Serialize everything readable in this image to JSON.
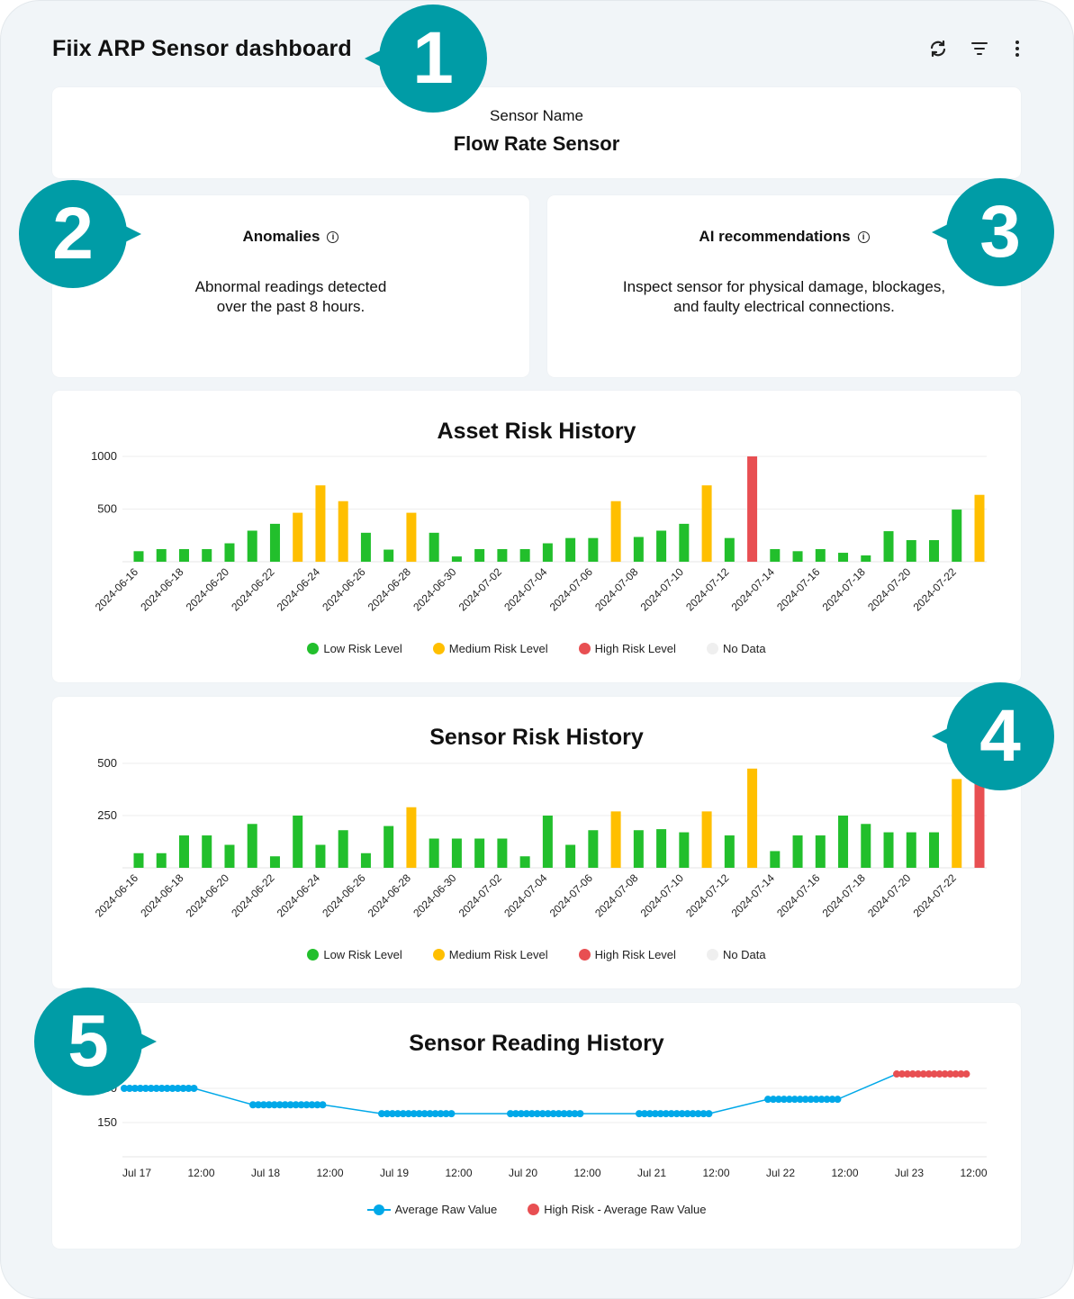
{
  "header": {
    "title": "Fiix ARP Sensor dashboard",
    "icons": [
      "refresh-icon",
      "filter-icon",
      "more-vertical-icon"
    ]
  },
  "sensor": {
    "label": "Sensor Name",
    "name": "Flow Rate Sensor"
  },
  "anomalies": {
    "title": "Anomalies",
    "line1": "Abnormal readings detected",
    "line2": "over the past 8 hours."
  },
  "ai": {
    "title": "AI recommendations",
    "line1": "Inspect sensor for physical damage, blockages,",
    "line2": "and faulty electrical connections."
  },
  "callouts": [
    "1",
    "2",
    "3",
    "4",
    "5"
  ],
  "colors": {
    "low": "#22bf2c",
    "medium": "#ffbf00",
    "high": "#e84f52",
    "nodata": "#efefef",
    "line": "#00a8e8",
    "callout": "#009ca6"
  },
  "legend": {
    "low": "Low Risk Level",
    "medium": "Medium Risk Level",
    "high": "High Risk Level",
    "nodata": "No Data"
  },
  "chart_data": [
    {
      "type": "bar",
      "title": "Asset Risk History",
      "categories": [
        "2024-06-16",
        "2024-06-17",
        "2024-06-18",
        "2024-06-19",
        "2024-06-20",
        "2024-06-21",
        "2024-06-22",
        "2024-06-23",
        "2024-06-24",
        "2024-06-25",
        "2024-06-26",
        "2024-06-27",
        "2024-06-28",
        "2024-06-29",
        "2024-06-30",
        "2024-07-01",
        "2024-07-02",
        "2024-07-03",
        "2024-07-04",
        "2024-07-05",
        "2024-07-06",
        "2024-07-07",
        "2024-07-08",
        "2024-07-09",
        "2024-07-10",
        "2024-07-11",
        "2024-07-12",
        "2024-07-13",
        "2024-07-14",
        "2024-07-15",
        "2024-07-16",
        "2024-07-17",
        "2024-07-18",
        "2024-07-19",
        "2024-07-20",
        "2024-07-21",
        "2024-07-22",
        "2024-07-23"
      ],
      "tick_labels": [
        "2024-06-16",
        "2024-06-18",
        "2024-06-20",
        "2024-06-22",
        "2024-06-24",
        "2024-06-26",
        "2024-06-28",
        "2024-06-30",
        "2024-07-02",
        "2024-07-04",
        "2024-07-06",
        "2024-07-08",
        "2024-07-10",
        "2024-07-12",
        "2024-07-14",
        "2024-07-16",
        "2024-07-18",
        "2024-07-20",
        "2024-07-22"
      ],
      "values": [
        100,
        120,
        120,
        120,
        175,
        295,
        360,
        465,
        725,
        575,
        275,
        115,
        465,
        275,
        50,
        120,
        120,
        120,
        175,
        225,
        225,
        575,
        235,
        295,
        360,
        725,
        225,
        1000,
        120,
        100,
        120,
        85,
        60,
        290,
        205,
        205,
        495,
        635
      ],
      "levels": [
        "low",
        "low",
        "low",
        "low",
        "low",
        "low",
        "low",
        "medium",
        "medium",
        "medium",
        "low",
        "low",
        "medium",
        "low",
        "low",
        "low",
        "low",
        "low",
        "low",
        "low",
        "low",
        "medium",
        "low",
        "low",
        "low",
        "medium",
        "low",
        "high",
        "low",
        "low",
        "low",
        "low",
        "low",
        "low",
        "low",
        "low",
        "low",
        "medium"
      ],
      "yticks": [
        500,
        1000
      ],
      "ylim": [
        0,
        1000
      ],
      "grid": true,
      "legend_position": "bottom"
    },
    {
      "type": "bar",
      "title": "Sensor Risk History",
      "categories": [
        "2024-06-16",
        "2024-06-17",
        "2024-06-18",
        "2024-06-19",
        "2024-06-20",
        "2024-06-21",
        "2024-06-22",
        "2024-06-23",
        "2024-06-24",
        "2024-06-25",
        "2024-06-26",
        "2024-06-27",
        "2024-06-28",
        "2024-06-29",
        "2024-06-30",
        "2024-07-01",
        "2024-07-02",
        "2024-07-03",
        "2024-07-04",
        "2024-07-05",
        "2024-07-06",
        "2024-07-07",
        "2024-07-08",
        "2024-07-09",
        "2024-07-10",
        "2024-07-11",
        "2024-07-12",
        "2024-07-13",
        "2024-07-14",
        "2024-07-15",
        "2024-07-16",
        "2024-07-17",
        "2024-07-18",
        "2024-07-19",
        "2024-07-20",
        "2024-07-21",
        "2024-07-22",
        "2024-07-23"
      ],
      "tick_labels": [
        "2024-06-16",
        "2024-06-18",
        "2024-06-20",
        "2024-06-22",
        "2024-06-24",
        "2024-06-26",
        "2024-06-28",
        "2024-06-30",
        "2024-07-02",
        "2024-07-04",
        "2024-07-06",
        "2024-07-08",
        "2024-07-10",
        "2024-07-12",
        "2024-07-14",
        "2024-07-16",
        "2024-07-18",
        "2024-07-20",
        "2024-07-22"
      ],
      "values": [
        70,
        70,
        155,
        155,
        110,
        210,
        55,
        250,
        110,
        180,
        70,
        200,
        290,
        140,
        140,
        140,
        140,
        55,
        250,
        110,
        180,
        270,
        180,
        185,
        170,
        270,
        155,
        475,
        80,
        155,
        155,
        250,
        210,
        170,
        170,
        170,
        425,
        440
      ],
      "levels": [
        "low",
        "low",
        "low",
        "low",
        "low",
        "low",
        "low",
        "low",
        "low",
        "low",
        "low",
        "low",
        "medium",
        "low",
        "low",
        "low",
        "low",
        "low",
        "low",
        "low",
        "low",
        "medium",
        "low",
        "low",
        "low",
        "medium",
        "low",
        "medium",
        "low",
        "low",
        "low",
        "low",
        "low",
        "low",
        "low",
        "low",
        "medium",
        "high"
      ],
      "yticks": [
        250,
        500
      ],
      "ylim": [
        0,
        500
      ],
      "grid": true,
      "legend_position": "bottom"
    },
    {
      "type": "line",
      "title": "Sensor Reading History",
      "xticks": [
        "Jul 17",
        "12:00",
        "Jul 18",
        "12:00",
        "Jul 19",
        "12:00",
        "Jul 20",
        "12:00",
        "Jul 21",
        "12:00",
        "Jul 22",
        "12:00",
        "Jul 23",
        "12:00"
      ],
      "yticks": [
        150,
        200
      ],
      "ylim": [
        100,
        225
      ],
      "grid": true,
      "legend_position": "bottom",
      "series": [
        {
          "name": "Average Raw Value",
          "color": "#00a8e8",
          "segments": [
            {
              "day": "Jul 17",
              "hours": [
                "00:00",
                "01:00",
                "02:00",
                "03:00",
                "04:00",
                "05:00",
                "06:00",
                "07:00",
                "08:00",
                "09:00",
                "10:00",
                "11:00",
                "12:00",
                "13:00"
              ],
              "value": 200
            },
            {
              "day": "Jul 18",
              "hours": [
                "00:00",
                "01:00",
                "02:00",
                "03:00",
                "04:00",
                "05:00",
                "06:00",
                "07:00",
                "08:00",
                "09:00",
                "10:00",
                "11:00",
                "12:00",
                "13:00"
              ],
              "value": 176
            },
            {
              "day": "Jul 19",
              "hours": [
                "00:00",
                "01:00",
                "02:00",
                "03:00",
                "04:00",
                "05:00",
                "06:00",
                "07:00",
                "08:00",
                "09:00",
                "10:00",
                "11:00",
                "12:00",
                "13:00"
              ],
              "value": 163
            },
            {
              "day": "Jul 20",
              "hours": [
                "00:00",
                "01:00",
                "02:00",
                "03:00",
                "04:00",
                "05:00",
                "06:00",
                "07:00",
                "08:00",
                "09:00",
                "10:00",
                "11:00",
                "12:00",
                "13:00"
              ],
              "value": 163
            },
            {
              "day": "Jul 21",
              "hours": [
                "00:00",
                "01:00",
                "02:00",
                "03:00",
                "04:00",
                "05:00",
                "06:00",
                "07:00",
                "08:00",
                "09:00",
                "10:00",
                "11:00",
                "12:00",
                "13:00"
              ],
              "value": 163
            },
            {
              "day": "Jul 22",
              "hours": [
                "00:00",
                "01:00",
                "02:00",
                "03:00",
                "04:00",
                "05:00",
                "06:00",
                "07:00",
                "08:00",
                "09:00",
                "10:00",
                "11:00",
                "12:00",
                "13:00"
              ],
              "value": 184
            }
          ]
        },
        {
          "name": "High Risk - Average Raw Value",
          "color": "#e84f52",
          "segments": [
            {
              "day": "Jul 23",
              "hours": [
                "00:00",
                "01:00",
                "02:00",
                "03:00",
                "04:00",
                "05:00",
                "06:00",
                "07:00",
                "08:00",
                "09:00",
                "10:00",
                "11:00",
                "12:00",
                "13:00"
              ],
              "value": 221
            }
          ]
        }
      ]
    }
  ]
}
